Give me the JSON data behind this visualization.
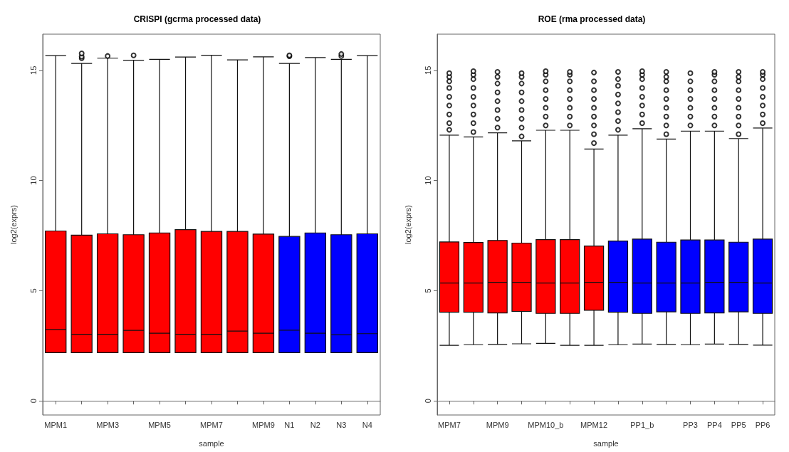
{
  "chart_data": [
    {
      "type": "box",
      "title": "CRISPI (gcrma processed data)",
      "xlabel": "sample",
      "ylabel": "log2(exprs)",
      "categories": [
        "MPM1",
        null,
        "MPM3",
        null,
        "MPM5",
        null,
        "MPM7",
        null,
        "MPM9",
        "N1",
        "N2",
        "N3",
        "N4"
      ],
      "colors": [
        "#ff0000",
        "#ff0000",
        "#ff0000",
        "#ff0000",
        "#ff0000",
        "#ff0000",
        "#ff0000",
        "#ff0000",
        "#ff0000",
        "#0000ff",
        "#0000ff",
        "#0000ff",
        "#0000ff"
      ],
      "ylim": [
        -0.64,
        16.64
      ],
      "yticks": [
        0,
        5,
        10,
        15
      ],
      "boxes": [
        {
          "low": 2.19,
          "q1": 2.19,
          "median": 3.24,
          "q3": 7.71,
          "high": 15.67
        },
        {
          "low": 2.19,
          "q1": 2.19,
          "median": 3.02,
          "q3": 7.52,
          "high": 15.31,
          "outliers": [
            15.55,
            15.62,
            15.77
          ]
        },
        {
          "low": 2.19,
          "q1": 2.19,
          "median": 3.02,
          "q3": 7.58,
          "high": 15.55,
          "outliers": [
            15.65
          ]
        },
        {
          "low": 2.19,
          "q1": 2.19,
          "median": 3.2,
          "q3": 7.54,
          "high": 15.46,
          "outliers": [
            15.68
          ]
        },
        {
          "low": 2.19,
          "q1": 2.19,
          "median": 3.07,
          "q3": 7.62,
          "high": 15.5
        },
        {
          "low": 2.19,
          "q1": 2.19,
          "median": 3.02,
          "q3": 7.77,
          "high": 15.6
        },
        {
          "low": 2.19,
          "q1": 2.19,
          "median": 3.02,
          "q3": 7.69,
          "high": 15.68
        },
        {
          "low": 2.19,
          "q1": 2.19,
          "median": 3.17,
          "q3": 7.69,
          "high": 15.47
        },
        {
          "low": 2.19,
          "q1": 2.19,
          "median": 3.07,
          "q3": 7.57,
          "high": 15.61
        },
        {
          "low": 2.19,
          "q1": 2.19,
          "median": 3.21,
          "q3": 7.46,
          "high": 15.31,
          "outliers": [
            15.64,
            15.68
          ]
        },
        {
          "low": 2.19,
          "q1": 2.19,
          "median": 3.07,
          "q3": 7.62,
          "high": 15.58
        },
        {
          "low": 2.19,
          "q1": 2.19,
          "median": 3.0,
          "q3": 7.54,
          "high": 15.5,
          "outliers": [
            15.65,
            15.74
          ]
        },
        {
          "low": 2.19,
          "q1": 2.19,
          "median": 3.05,
          "q3": 7.58,
          "high": 15.67
        }
      ]
    },
    {
      "type": "box",
      "title": "ROE (rma processed data)",
      "xlabel": "sample",
      "ylabel": "log2(exprs)",
      "categories": [
        "MPM7",
        null,
        "MPM9",
        null,
        "MPM10_b",
        null,
        "MPM12",
        null,
        "PP1_b",
        null,
        "PP3",
        "PP4",
        "PP5",
        "PP6"
      ],
      "colors": [
        "#ff0000",
        "#ff0000",
        "#ff0000",
        "#ff0000",
        "#ff0000",
        "#ff0000",
        "#ff0000",
        "#0000ff",
        "#0000ff",
        "#0000ff",
        "#0000ff",
        "#0000ff",
        "#0000ff",
        "#0000ff"
      ],
      "ylim": [
        -0.64,
        16.64
      ],
      "yticks": [
        0,
        5,
        10,
        15
      ],
      "boxes": [
        {
          "low": 2.52,
          "q1": 4.02,
          "median": 5.35,
          "q3": 7.21,
          "high": 12.06,
          "outliers": [
            12.3,
            12.6,
            13.0,
            13.4,
            13.8,
            14.2,
            14.5,
            14.7,
            14.87
          ]
        },
        {
          "low": 2.55,
          "q1": 4.02,
          "median": 5.35,
          "q3": 7.19,
          "high": 11.98,
          "outliers": [
            12.2,
            12.6,
            13.0,
            13.4,
            13.8,
            14.2,
            14.6,
            14.8,
            14.96
          ]
        },
        {
          "low": 2.56,
          "q1": 3.99,
          "median": 5.38,
          "q3": 7.28,
          "high": 12.16,
          "outliers": [
            12.4,
            12.8,
            13.2,
            13.6,
            14.0,
            14.4,
            14.7,
            14.93
          ]
        },
        {
          "low": 2.59,
          "q1": 4.06,
          "median": 5.38,
          "q3": 7.16,
          "high": 11.8,
          "outliers": [
            12.0,
            12.4,
            12.8,
            13.2,
            13.6,
            14.0,
            14.4,
            14.7,
            14.87
          ]
        },
        {
          "low": 2.61,
          "q1": 3.97,
          "median": 5.35,
          "q3": 7.32,
          "high": 12.28,
          "outliers": [
            12.5,
            12.9,
            13.3,
            13.7,
            14.1,
            14.5,
            14.8,
            14.96
          ]
        },
        {
          "low": 2.52,
          "q1": 3.97,
          "median": 5.35,
          "q3": 7.32,
          "high": 12.28,
          "outliers": [
            12.5,
            12.9,
            13.3,
            13.7,
            14.1,
            14.5,
            14.8,
            14.93
          ]
        },
        {
          "low": 2.52,
          "q1": 4.11,
          "median": 5.38,
          "q3": 7.03,
          "high": 11.43,
          "outliers": [
            11.7,
            12.1,
            12.5,
            12.9,
            13.3,
            13.7,
            14.1,
            14.5,
            14.9
          ]
        },
        {
          "low": 2.55,
          "q1": 4.02,
          "median": 5.38,
          "q3": 7.25,
          "high": 12.06,
          "outliers": [
            12.3,
            12.7,
            13.1,
            13.5,
            13.9,
            14.3,
            14.6,
            14.93
          ]
        },
        {
          "low": 2.58,
          "q1": 3.97,
          "median": 5.35,
          "q3": 7.34,
          "high": 12.35,
          "outliers": [
            12.6,
            13.0,
            13.4,
            13.8,
            14.2,
            14.6,
            14.8,
            14.96
          ]
        },
        {
          "low": 2.56,
          "q1": 4.04,
          "median": 5.35,
          "q3": 7.2,
          "high": 11.88,
          "outliers": [
            12.1,
            12.5,
            12.9,
            13.3,
            13.7,
            14.1,
            14.5,
            14.7,
            14.93
          ]
        },
        {
          "low": 2.55,
          "q1": 3.97,
          "median": 5.35,
          "q3": 7.3,
          "high": 12.24,
          "outliers": [
            12.5,
            12.9,
            13.3,
            13.7,
            14.1,
            14.5,
            14.87
          ]
        },
        {
          "low": 2.58,
          "q1": 3.99,
          "median": 5.38,
          "q3": 7.3,
          "high": 12.24,
          "outliers": [
            12.5,
            12.9,
            13.3,
            13.7,
            14.1,
            14.5,
            14.8,
            14.93
          ]
        },
        {
          "low": 2.56,
          "q1": 4.04,
          "median": 5.38,
          "q3": 7.2,
          "high": 11.9,
          "outliers": [
            12.1,
            12.5,
            12.9,
            13.3,
            13.7,
            14.1,
            14.5,
            14.7,
            14.93
          ]
        },
        {
          "low": 2.53,
          "q1": 3.97,
          "median": 5.35,
          "q3": 7.34,
          "high": 12.38,
          "outliers": [
            12.6,
            13.0,
            13.4,
            13.8,
            14.2,
            14.6,
            14.8,
            14.93
          ]
        }
      ]
    }
  ]
}
